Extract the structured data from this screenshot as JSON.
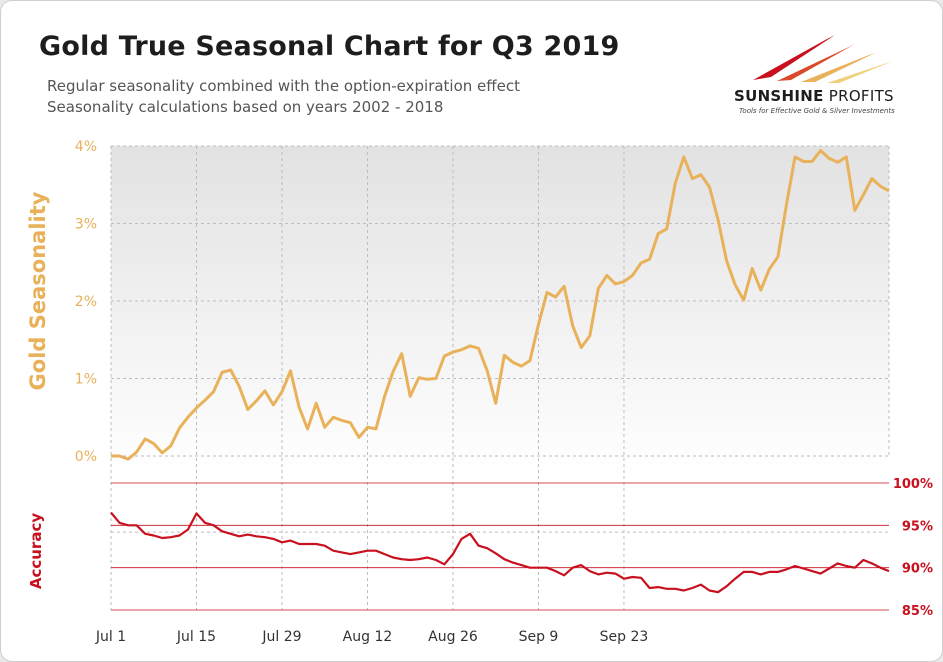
{
  "header": {
    "title": "Gold True Seasonal Chart for Q3 2019",
    "subtitle_1": "Regular seasonality combined with the option-expiration effect",
    "subtitle_2": "Seasonality calculations based on years 2002 - 2018"
  },
  "logo": {
    "name_bold": "SUNSHINE",
    "name_light": " PROFITS",
    "tagline": "Tools for Effective Gold & Silver Investments"
  },
  "colors": {
    "seasonality": "#e8b15a",
    "accuracy": "#c8101e",
    "grid": "#bdbdbd",
    "label_text": "#333333"
  },
  "chart_data": [
    {
      "type": "line",
      "title": "Gold Seasonality",
      "ylabel": "Gold Seasonality",
      "ylim": [
        0,
        4
      ],
      "y_ticks": [
        0,
        1,
        2,
        3,
        4
      ],
      "y_tick_labels": [
        "0%",
        "1%",
        "2%",
        "3%",
        "4%"
      ],
      "x_tick_labels": [
        "Jul 1",
        "Jul 15",
        "Jul 29",
        "Aug 12",
        "Aug 26",
        "Sep 9",
        "Sep 23"
      ],
      "x_tick_index": [
        0,
        10,
        20,
        30,
        40,
        50,
        60
      ],
      "series": [
        {
          "name": "Gold Seasonality",
          "values": [
            0.0,
            0.0,
            -0.04,
            0.05,
            0.22,
            0.16,
            0.04,
            0.13,
            0.36,
            0.5,
            0.62,
            0.72,
            0.83,
            1.08,
            1.11,
            0.9,
            0.6,
            0.71,
            0.84,
            0.66,
            0.83,
            1.1,
            0.63,
            0.35,
            0.68,
            0.37,
            0.5,
            0.46,
            0.43,
            0.24,
            0.37,
            0.35,
            0.77,
            1.09,
            1.32,
            0.77,
            1.01,
            0.99,
            1.0,
            1.29,
            1.34,
            1.37,
            1.42,
            1.39,
            1.1,
            0.68,
            1.3,
            1.21,
            1.16,
            1.23,
            1.7,
            2.11,
            2.05,
            2.19,
            1.68,
            1.4,
            1.55,
            2.16,
            2.33,
            2.22,
            2.25,
            2.33,
            2.49,
            2.54,
            2.87,
            2.93,
            3.52,
            3.86,
            3.58,
            3.63,
            3.47,
            3.05,
            2.52,
            2.21,
            2.01,
            2.42,
            2.14,
            2.41,
            2.57,
            3.24,
            3.86,
            3.8,
            3.8,
            3.94,
            3.84,
            3.79,
            3.86,
            3.17,
            3.37,
            3.58,
            3.48,
            3.42
          ]
        }
      ]
    },
    {
      "type": "line",
      "title": "Accuracy",
      "ylabel": "Accuracy",
      "ylim": [
        85,
        100
      ],
      "y_ticks": [
        85,
        90,
        95,
        100
      ],
      "y_tick_labels": [
        "85%",
        "90%",
        "95%",
        "100%"
      ],
      "series": [
        {
          "name": "Accuracy",
          "values": [
            96.5,
            95.3,
            95.0,
            95.0,
            94.0,
            93.8,
            93.5,
            93.6,
            93.8,
            94.5,
            96.4,
            95.3,
            95.0,
            94.3,
            94.0,
            93.7,
            93.9,
            93.7,
            93.6,
            93.4,
            93.0,
            93.2,
            92.8,
            92.8,
            92.8,
            92.6,
            92.0,
            91.8,
            91.6,
            91.8,
            92.0,
            92.0,
            91.6,
            91.2,
            91.0,
            90.9,
            91.0,
            91.2,
            90.9,
            90.4,
            91.6,
            93.4,
            94.0,
            92.6,
            92.3,
            91.7,
            91.0,
            90.6,
            90.3,
            90.0,
            90.0,
            90.0,
            89.6,
            89.1,
            90.0,
            90.3,
            89.6,
            89.2,
            89.4,
            89.3,
            88.7,
            88.9,
            88.8,
            87.6,
            87.7,
            87.5,
            87.5,
            87.3,
            87.6,
            88.0,
            87.3,
            87.1,
            87.8,
            88.7,
            89.5,
            89.5,
            89.2,
            89.5,
            89.5,
            89.8,
            90.2,
            89.9,
            89.6,
            89.3,
            89.9,
            90.5,
            90.2,
            90.0,
            90.9,
            90.5,
            90.0,
            89.6
          ]
        }
      ]
    }
  ]
}
